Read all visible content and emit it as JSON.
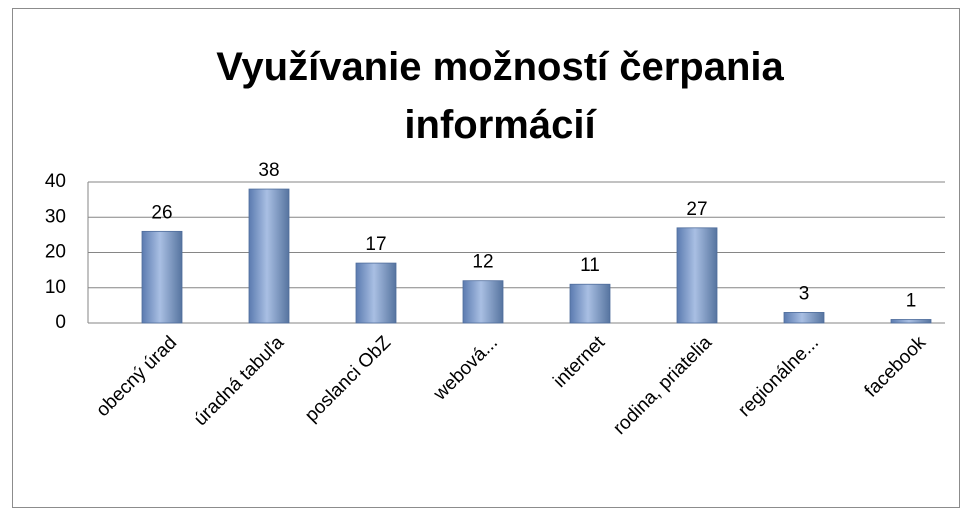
{
  "chart_data": {
    "type": "bar",
    "title": "Využívanie možností čerpania informácií",
    "categories": [
      "obecný úrad",
      "úradná tabuľa",
      "poslanci ObZ",
      "webová...",
      "internet",
      "rodina, priatelia",
      "regionálne...",
      "facebook"
    ],
    "values": [
      26,
      38,
      17,
      12,
      11,
      27,
      3,
      1
    ],
    "color": "#7f9ccc",
    "ylim": [
      0,
      40
    ],
    "yticks": [
      0,
      10,
      20,
      30,
      40
    ],
    "grid": true
  }
}
